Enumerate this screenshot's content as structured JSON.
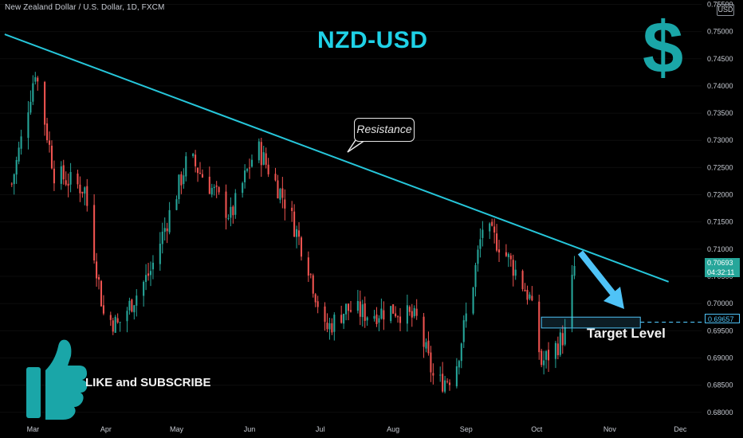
{
  "header": {
    "symbol_line": "New Zealand Dollar / U.S. Dollar, 1D, FXCM",
    "currency": "USD"
  },
  "overlay": {
    "title": "NZD-USD",
    "dollar_glyph": "$",
    "callout": "Resistance",
    "target_label": "Target Level",
    "cta": "LIKE and SUBSCRIBE"
  },
  "price_tags": {
    "last_price": "0.70693",
    "countdown": "04:32:11",
    "target_price": "0.69657"
  },
  "colors": {
    "background": "#000000",
    "up_candle": "#26a69a",
    "down_candle": "#ef5350",
    "trendline": "#26c6da",
    "accent": "#1aa6a8",
    "target_zone": "#4fc3f7"
  },
  "icons": {
    "thumb": "thumbs-up-icon",
    "arrow": "down-right-arrow-icon"
  },
  "chart_data": {
    "type": "candlestick",
    "y_axis": {
      "ticks": [
        "0.75500",
        "0.75000",
        "0.74500",
        "0.74000",
        "0.73500",
        "0.73000",
        "0.72500",
        "0.72000",
        "0.71500",
        "0.71000",
        "0.70500",
        "0.70000",
        "0.69500",
        "0.69000",
        "0.68500",
        "0.68000"
      ],
      "ylim": [
        0.6785,
        0.7558
      ]
    },
    "x_axis": {
      "ticks": [
        "Mar",
        "Apr",
        "May",
        "Jun",
        "Jul",
        "Aug",
        "Sep",
        "Oct",
        "Nov",
        "Dec"
      ]
    },
    "candle_range": {
      "start": "2023-02-20",
      "end": "2023-10-17"
    },
    "key_points": [
      {
        "date": "2023-02-20",
        "close": 0.722
      },
      {
        "date": "2023-02-24",
        "close": 0.73
      },
      {
        "date": "2023-03-02",
        "close": 0.743
      },
      {
        "date": "2023-03-10",
        "close": 0.724
      },
      {
        "date": "2023-03-23",
        "close": 0.721
      },
      {
        "date": "2023-03-31",
        "close": 0.698
      },
      {
        "date": "2023-04-06",
        "close": 0.696
      },
      {
        "date": "2023-04-20",
        "close": 0.706
      },
      {
        "date": "2023-05-06",
        "close": 0.727
      },
      {
        "date": "2023-05-13",
        "close": 0.723
      },
      {
        "date": "2023-05-24",
        "close": 0.716
      },
      {
        "date": "2023-06-04",
        "close": 0.729
      },
      {
        "date": "2023-06-10",
        "close": 0.724
      },
      {
        "date": "2023-06-17",
        "close": 0.718
      },
      {
        "date": "2023-06-26",
        "close": 0.707
      },
      {
        "date": "2023-07-03",
        "close": 0.695
      },
      {
        "date": "2023-07-12",
        "close": 0.699
      },
      {
        "date": "2023-07-22",
        "close": 0.698
      },
      {
        "date": "2023-08-01",
        "close": 0.699
      },
      {
        "date": "2023-08-11",
        "close": 0.697
      },
      {
        "date": "2023-08-19",
        "close": 0.685
      },
      {
        "date": "2023-08-27",
        "close": 0.687
      },
      {
        "date": "2023-09-04",
        "close": 0.704
      },
      {
        "date": "2023-09-08",
        "close": 0.714
      },
      {
        "date": "2023-09-15",
        "close": 0.711
      },
      {
        "date": "2023-09-22",
        "close": 0.706
      },
      {
        "date": "2023-09-28",
        "close": 0.701
      },
      {
        "date": "2023-10-03",
        "close": 0.689
      },
      {
        "date": "2023-10-10",
        "close": 0.6925
      },
      {
        "date": "2023-10-13",
        "close": 0.6945
      },
      {
        "date": "2023-10-17",
        "close": 0.7069
      }
    ],
    "annotations": {
      "resistance_line": [
        {
          "date": "2023-02-17",
          "price": 0.7495
        },
        {
          "date": "2023-11-26",
          "price": 0.704
        }
      ],
      "target_zone": {
        "date_from": "2023-10-03",
        "date_to": "2023-11-14",
        "price_low": 0.6955,
        "price_high": 0.6975
      },
      "target_line_price": 0.69657
    }
  }
}
